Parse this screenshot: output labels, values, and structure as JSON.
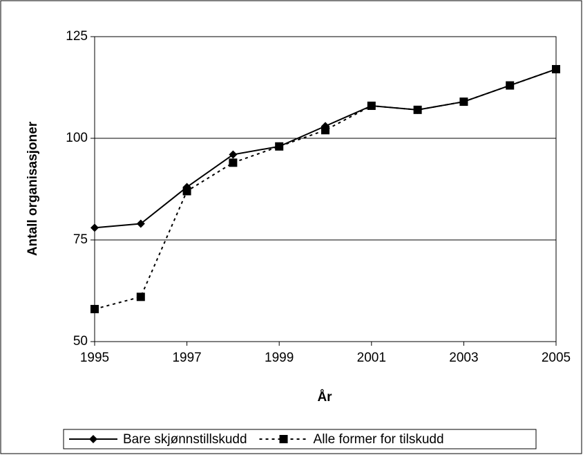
{
  "chart_data": {
    "type": "line",
    "x_label": "År",
    "y_label": "Antall organisasjoner",
    "x": [
      1995,
      1996,
      1997,
      1998,
      1999,
      2000,
      2001,
      2002,
      2003,
      2004,
      2005
    ],
    "series": [
      {
        "name": "Bare skjønnstillskudd",
        "color": "#000000",
        "marker": "diamond",
        "dash": "solid",
        "values": [
          78,
          79,
          88,
          96,
          98,
          103,
          108,
          107,
          109,
          113,
          117
        ]
      },
      {
        "name": "Alle former for tilskudd",
        "color": "#000000",
        "marker": "square",
        "dash": "dotted",
        "values": [
          58,
          61,
          87,
          94,
          98,
          102,
          108,
          107,
          109,
          113,
          117
        ]
      }
    ],
    "xlim": [
      1995,
      2005
    ],
    "xticks": [
      1995,
      1997,
      1999,
      2001,
      2003,
      2005
    ],
    "ylim": [
      50,
      125
    ],
    "yticks": [
      50,
      75,
      100,
      125
    ],
    "grid": true,
    "legend": "bottom"
  }
}
